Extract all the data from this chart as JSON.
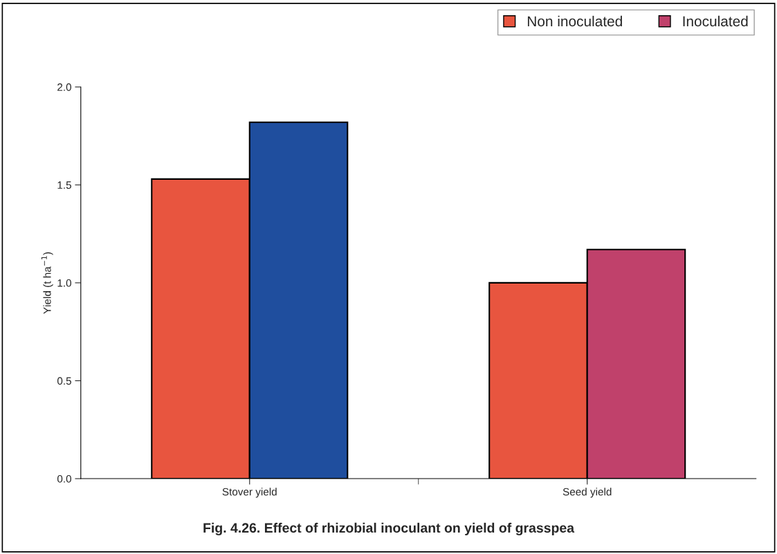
{
  "chart_data": {
    "type": "bar",
    "title": "Fig. 4.26. Effect of rhizobial inoculant on yield of grasspea",
    "ylabel": "Yield (t ha$^{−1}$)",
    "categories": [
      "Stover yield",
      "Seed yield"
    ],
    "series": [
      {
        "name": "Non inoculated",
        "color": "#e8553f",
        "values": [
          1.53,
          1.0
        ]
      },
      {
        "name": "Inoculated",
        "color": "#c0416b",
        "colors": [
          "#1f4e9e",
          "#c0416b"
        ],
        "values": [
          1.82,
          1.17
        ]
      }
    ],
    "ylim": [
      0,
      2
    ],
    "yticks": [
      {
        "value": 0,
        "label": "0.0"
      },
      {
        "value": 0.5,
        "label": "0.5"
      },
      {
        "value": 1,
        "label": "1.0"
      },
      {
        "value": 1.5,
        "label": "1.5"
      },
      {
        "value": 2,
        "label": "2.0"
      }
    ],
    "grid": false,
    "legend": "top right"
  }
}
